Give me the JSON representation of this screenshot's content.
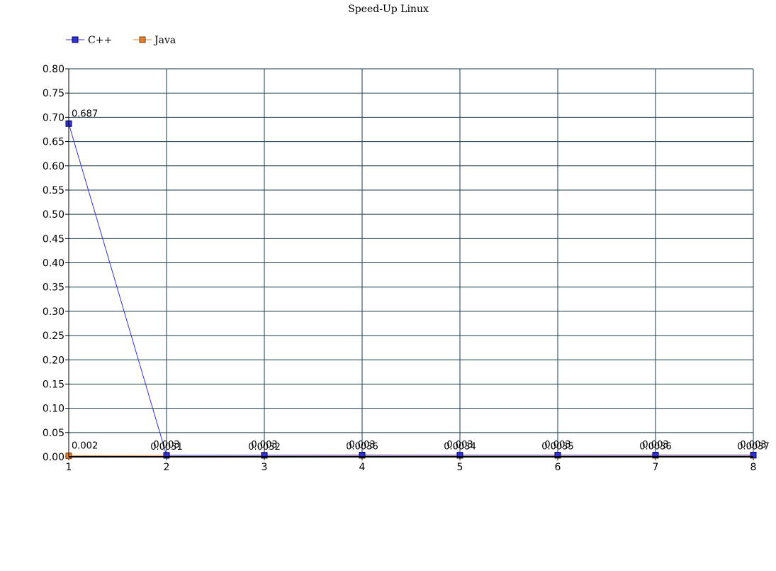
{
  "chart_data": {
    "type": "line",
    "title": "Speed-Up Linux",
    "xlabel": "",
    "ylabel": "",
    "x": [
      1,
      2,
      3,
      4,
      5,
      6,
      7,
      8
    ],
    "ylim": [
      0,
      0.8
    ],
    "yticks": [
      "0.00",
      "0.05",
      "0.10",
      "0.15",
      "0.20",
      "0.25",
      "0.30",
      "0.35",
      "0.40",
      "0.45",
      "0.50",
      "0.55",
      "0.60",
      "0.65",
      "0.70",
      "0.75",
      "0.80"
    ],
    "grid": true,
    "legend_position": "top-left",
    "series": [
      {
        "name": "C++",
        "color": "#3333cc",
        "values": [
          0.687,
          0.0031,
          0.0032,
          0.0036,
          0.0034,
          0.0035,
          0.0036,
          0.0037
        ],
        "labels": [
          "0.687",
          "0.0031",
          "0.0032",
          "0.0036",
          "0.0034",
          "0.0035",
          "0.0036",
          "0.0037"
        ]
      },
      {
        "name": "Java",
        "color": "#e08030",
        "values": [
          0.002,
          0.003,
          0.003,
          0.003,
          0.003,
          0.003,
          0.003,
          0.003
        ],
        "labels": [
          "0.002",
          "0.003",
          "0.003",
          "0.003",
          "0.003",
          "0.003",
          "0.003",
          "0.003"
        ]
      }
    ],
    "gridColor": "#1a3a4a",
    "axisColor": "#000000"
  }
}
